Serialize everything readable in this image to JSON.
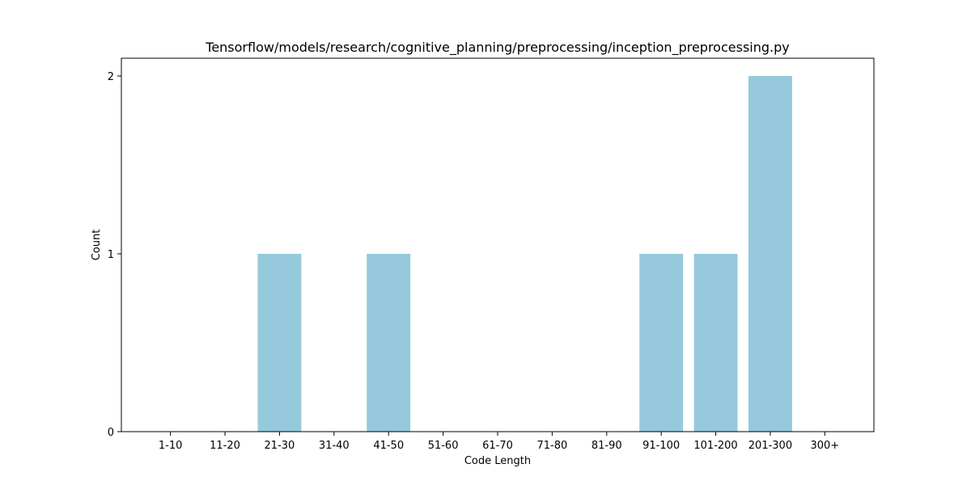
{
  "chart_data": {
    "type": "bar",
    "title": "Tensorflow/models/research/cognitive_planning/preprocessing/inception_preprocessing.py",
    "xlabel": "Code Length",
    "ylabel": "Count",
    "categories": [
      "1-10",
      "11-20",
      "21-30",
      "31-40",
      "41-50",
      "51-60",
      "61-70",
      "71-80",
      "81-90",
      "91-100",
      "101-200",
      "201-300",
      "300+"
    ],
    "values": [
      0,
      0,
      1,
      0,
      1,
      0,
      0,
      0,
      0,
      1,
      1,
      2,
      0
    ],
    "ylim": [
      0,
      2.1
    ],
    "yticks": [
      0,
      1,
      2
    ],
    "grid": false,
    "legend": "none",
    "bar_color": "#96c9dc"
  }
}
